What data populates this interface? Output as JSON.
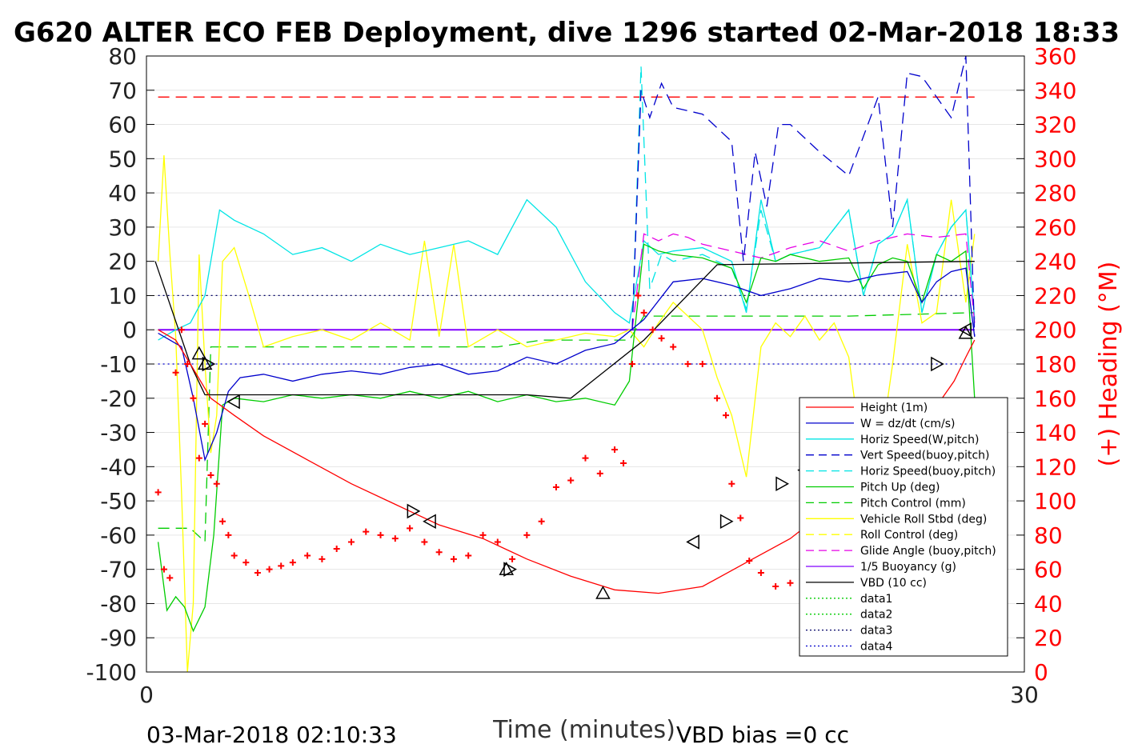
{
  "chart_data": {
    "type": "line",
    "title": "G620 ALTER ECO FEB Deployment, dive 1296 started 02-Mar-2018 18:33",
    "xlabel": "Time (minutes)",
    "ylabel_right": "(+) Heading (°M)",
    "footer_left": "03-Mar-2018 02:10:33",
    "footer_right": "VBD bias =0 cc",
    "xlim": [
      0,
      30
    ],
    "ylim": [
      -100,
      80
    ],
    "ylim_right": [
      0,
      360
    ],
    "x_ticks": [
      "0",
      "30"
    ],
    "y_ticks": [
      "80",
      "70",
      "60",
      "50",
      "40",
      "30",
      "20",
      "10",
      "0",
      "-10",
      "-20",
      "-30",
      "-40",
      "-50",
      "-60",
      "-70",
      "-80",
      "-90",
      "-100"
    ],
    "y_ticks_right": [
      "360",
      "340",
      "320",
      "300",
      "280",
      "260",
      "240",
      "220",
      "200",
      "180",
      "160",
      "140",
      "120",
      "100",
      "80",
      "60",
      "40",
      "20",
      "0"
    ],
    "grid": "horizontal",
    "legend_position": "bottom-right",
    "colors": {
      "height": "#ff0000",
      "w": "#0000cc",
      "horiz": "#00e5e5",
      "vert_buoy": "#0000cc",
      "pitch_up": "#00cc00",
      "pitch_ctrl": "#00cc00",
      "roll": "#ffff00",
      "glide": "#e600e6",
      "buoyancy": "#8000ff",
      "vbd": "#000000",
      "heading": "#ff0000",
      "axis_right": "#ff0000"
    },
    "legend": [
      {
        "label": "Height (1m)",
        "color": "#ff0000",
        "dash": ""
      },
      {
        "label": "W = dz/dt (cm/s)",
        "color": "#0000cc",
        "dash": ""
      },
      {
        "label": "Horiz Speed(W,pitch)",
        "color": "#00e5e5",
        "dash": ""
      },
      {
        "label": "Vert Speed(buoy,pitch)",
        "color": "#0000cc",
        "dash": "10,6"
      },
      {
        "label": "Horiz Speed(buoy,pitch)",
        "color": "#00e5e5",
        "dash": "10,6"
      },
      {
        "label": "Pitch Up (deg)",
        "color": "#00cc00",
        "dash": ""
      },
      {
        "label": "Pitch Control (mm)",
        "color": "#00cc00",
        "dash": "10,6"
      },
      {
        "label": "Vehicle Roll Stbd (deg)",
        "color": "#ffff00",
        "dash": ""
      },
      {
        "label": "Roll Control (deg)",
        "color": "#ffff00",
        "dash": "10,6"
      },
      {
        "label": "Glide Angle (buoy,pitch)",
        "color": "#e600e6",
        "dash": "10,6"
      },
      {
        "label": "1/5 Buoyancy (g)",
        "color": "#8000ff",
        "dash": ""
      },
      {
        "label": "VBD (10 cc)",
        "color": "#000000",
        "dash": ""
      },
      {
        "label": "data1",
        "color": "#00cc00",
        "dash": "2,3"
      },
      {
        "label": "data2",
        "color": "#00cc00",
        "dash": "2,3"
      },
      {
        "label": "data3",
        "color": "#000066",
        "dash": "2,3"
      },
      {
        "label": "data4",
        "color": "#0000cc",
        "dash": "2,3"
      }
    ],
    "series": [
      {
        "key": "height",
        "x": [
          0.4,
          1.0,
          1.5,
          2.2,
          3.0,
          4.0,
          5.5,
          7.0,
          8.5,
          10.0,
          11.5,
          13.0,
          14.5,
          16.0,
          17.5,
          19.0,
          20.5,
          22.0,
          23.5,
          24.5,
          25.5,
          26.7,
          27.6,
          28.0,
          28.3
        ],
        "y": [
          0,
          -3,
          -10,
          -20,
          -25,
          -31,
          -38,
          -45,
          -51,
          -57,
          -61,
          -67,
          -72,
          -76,
          -77,
          -75,
          -68,
          -61,
          -51,
          -44,
          -37,
          -26,
          -15,
          -8,
          -3
        ]
      },
      {
        "key": "w",
        "x": [
          0.4,
          0.8,
          1.2,
          1.6,
          2.0,
          2.4,
          2.8,
          3.2,
          4.0,
          5.0,
          6.0,
          7.0,
          8.0,
          9.0,
          10.0,
          11.0,
          12.0,
          13.0,
          14.0,
          15.0,
          16.0,
          17.0,
          18.0,
          19.0,
          20.0,
          21.0,
          22.0,
          23.0,
          24.0,
          25.0,
          26.0,
          26.5,
          27.0,
          27.5,
          28.0,
          28.3
        ],
        "y": [
          -1,
          -3,
          -5,
          -20,
          -38,
          -30,
          -18,
          -14,
          -13,
          -15,
          -13,
          -12,
          -13,
          -11,
          -10,
          -13,
          -12,
          -8,
          -10,
          -6,
          -4,
          3,
          14,
          15,
          13,
          10,
          12,
          15,
          14,
          16,
          17,
          8,
          14,
          17,
          18,
          -2
        ]
      },
      {
        "key": "horiz",
        "x": [
          0.4,
          1.0,
          1.5,
          2.0,
          2.5,
          3.0,
          4.0,
          5.0,
          6.0,
          7.0,
          8.0,
          9.0,
          10.0,
          11.0,
          12.0,
          13.0,
          14.0,
          15.0,
          16.0,
          16.5,
          17.0,
          17.5,
          18.0,
          19.0,
          20.0,
          20.5,
          21.0,
          21.5,
          22.0,
          23.0,
          24.0,
          24.5,
          25.0,
          25.5,
          26.0,
          26.5,
          27.0,
          27.5,
          28.0,
          28.3
        ],
        "y": [
          -3,
          0,
          2,
          10,
          35,
          32,
          28,
          22,
          24,
          20,
          25,
          22,
          24,
          26,
          22,
          38,
          30,
          14,
          5,
          2,
          26,
          22,
          23,
          24,
          20,
          5,
          38,
          20,
          22,
          24,
          35,
          10,
          25,
          28,
          38,
          5,
          22,
          30,
          35,
          3
        ]
      },
      {
        "key": "vert_buoy",
        "x": [
          16.6,
          16.9,
          17.2,
          17.6,
          18.0,
          19.0,
          20.0,
          20.4,
          20.8,
          21.2,
          21.6,
          22.0,
          23.0,
          24.0,
          25.0,
          25.5,
          26.0,
          26.5,
          27.0,
          27.5,
          28.0,
          28.3
        ],
        "y": [
          0,
          70,
          62,
          72,
          65,
          63,
          55,
          20,
          52,
          36,
          60,
          60,
          52,
          45,
          68,
          30,
          75,
          74,
          68,
          62,
          80,
          -2
        ]
      },
      {
        "key": "horiz_buoy",
        "x": [
          16.6,
          16.9,
          17.2,
          17.6,
          18.0,
          19.0,
          20.0,
          20.5,
          21.0,
          21.5,
          22.0,
          23.0,
          24.0,
          24.5,
          25.0,
          25.5,
          26.0,
          26.5,
          27.0,
          27.5,
          28.0,
          28.3
        ],
        "y": [
          0,
          77,
          12,
          22,
          20,
          22,
          18,
          6,
          35,
          20,
          22,
          24,
          35,
          10,
          25,
          28,
          38,
          5,
          22,
          30,
          35,
          3
        ]
      },
      {
        "key": "pitch_up",
        "x": [
          0.4,
          0.7,
          1.0,
          1.3,
          1.6,
          2.0,
          2.3,
          2.6,
          3.0,
          4.0,
          5.0,
          6.0,
          7.0,
          8.0,
          9.0,
          10.0,
          11.0,
          12.0,
          13.0,
          14.0,
          15.0,
          16.0,
          16.5,
          17.0,
          17.5,
          18.0,
          19.0,
          20.0,
          20.5,
          21.0,
          21.5,
          22.0,
          23.0,
          24.0,
          24.5,
          25.0,
          25.5,
          26.0,
          26.5,
          27.0,
          27.5,
          28.0,
          28.3
        ],
        "y": [
          -62,
          -82,
          -78,
          -81,
          -88,
          -81,
          -60,
          -22,
          -20,
          -21,
          -19,
          -20,
          -19,
          -20,
          -18,
          -20,
          -18,
          -21,
          -19,
          -21,
          -20,
          -22,
          -15,
          25,
          23,
          22,
          21,
          18,
          8,
          21,
          20,
          22,
          20,
          21,
          12,
          19,
          21,
          20,
          8,
          22,
          20,
          23,
          -20
        ]
      },
      {
        "key": "pitch_ctrl",
        "x": [
          0.4,
          1.5,
          2.0,
          2.2,
          12.0,
          13.5,
          16.5,
          17.0,
          20.0,
          24.0,
          28.3
        ],
        "y": [
          -58,
          -58,
          -62,
          -5,
          -5,
          -3,
          -3,
          4,
          4,
          4,
          5
        ]
      },
      {
        "key": "roll",
        "x": [
          0.4,
          0.6,
          0.8,
          1.0,
          1.2,
          1.4,
          1.6,
          1.8,
          2.0,
          2.2,
          2.4,
          2.6,
          3.0,
          3.5,
          4.0,
          5.0,
          6.0,
          7.0,
          8.0,
          9.0,
          9.5,
          10.0,
          10.5,
          11.0,
          12.0,
          13.0,
          14.0,
          15.0,
          16.0,
          16.5,
          17.0,
          17.5,
          18.0,
          19.0,
          19.5,
          20.0,
          20.5,
          21.0,
          21.5,
          22.0,
          22.5,
          23.0,
          23.5,
          24.0,
          24.5,
          25.0,
          25.5,
          26.0,
          26.5,
          27.0,
          27.5,
          28.0,
          28.3
        ],
        "y": [
          20,
          51,
          22,
          -2,
          -48,
          -100,
          -80,
          22,
          -10,
          -36,
          -25,
          20,
          24,
          10,
          -5,
          -2,
          0,
          -3,
          2,
          -3,
          26,
          -2,
          25,
          -5,
          0,
          -5,
          -3,
          -1,
          -2,
          0,
          -5,
          2,
          8,
          0,
          -14,
          -25,
          -43,
          -5,
          2,
          -2,
          4,
          -3,
          2,
          -8,
          -40,
          -40,
          -10,
          25,
          2,
          5,
          38,
          8,
          28
        ]
      },
      {
        "key": "glide",
        "x": [
          16.6,
          17.0,
          17.5,
          18.0,
          18.5,
          19.0,
          20.0,
          21.0,
          22.0,
          23.0,
          24.0,
          25.0,
          26.0,
          27.0,
          28.0,
          28.3
        ],
        "y": [
          0,
          28,
          26,
          28,
          27,
          25,
          23,
          21,
          24,
          26,
          23,
          26,
          28,
          27,
          28,
          2
        ]
      },
      {
        "key": "buoyancy",
        "x": [
          0.4,
          16.5,
          16.6,
          28.3
        ],
        "y": [
          0,
          0,
          0,
          0
        ]
      },
      {
        "key": "vbd",
        "x": [
          0.3,
          0.9,
          1.5,
          2.0,
          9.0,
          13.0,
          14.5,
          17.0,
          19.5,
          28.3
        ],
        "y": [
          20,
          5,
          -10,
          -19,
          -19,
          -19,
          -20,
          -3,
          19,
          20
        ]
      },
      {
        "key": "data3",
        "x": [
          0.4,
          28.3
        ],
        "y": [
          10,
          10
        ]
      },
      {
        "key": "data4",
        "x": [
          0.4,
          28.3
        ],
        "y": [
          -10,
          -10
        ]
      },
      {
        "key": "heading_ref",
        "x": [
          0.4,
          28.3
        ],
        "y": [
          68,
          68
        ]
      }
    ],
    "heading": {
      "x": [
        0.4,
        0.6,
        0.8,
        1.0,
        1.2,
        1.4,
        1.6,
        1.8,
        2.0,
        2.2,
        2.4,
        2.6,
        2.8,
        3.0,
        3.4,
        3.8,
        4.2,
        4.6,
        5.0,
        5.5,
        6.0,
        6.5,
        7.0,
        7.5,
        8.0,
        8.5,
        9.0,
        9.5,
        10.0,
        10.5,
        11.0,
        11.5,
        12.0,
        12.5,
        13.0,
        13.5,
        14.0,
        14.5,
        15.0,
        15.5,
        16.0,
        16.3,
        16.6,
        16.8,
        17.0,
        17.3,
        17.6,
        18.0,
        18.5,
        19.0,
        19.5,
        19.8,
        20.0,
        20.3,
        20.6,
        21.0,
        21.5,
        22.0,
        22.5,
        23.0,
        23.5,
        24.0,
        24.5,
        25.0,
        25.5,
        26.0,
        26.5,
        27.0,
        27.5,
        28.0,
        28.3
      ],
      "y": [
        105,
        60,
        55,
        175,
        200,
        180,
        160,
        125,
        145,
        115,
        110,
        88,
        80,
        68,
        64,
        58,
        60,
        62,
        64,
        68,
        66,
        72,
        76,
        82,
        80,
        78,
        84,
        76,
        70,
        66,
        68,
        80,
        76,
        66,
        80,
        88,
        108,
        112,
        125,
        116,
        130,
        122,
        180,
        220,
        210,
        200,
        195,
        190,
        180,
        180,
        160,
        150,
        110,
        90,
        65,
        58,
        50,
        52,
        46,
        44,
        40,
        65,
        95,
        125,
        115,
        118,
        112,
        45,
        85,
        100,
        82
      ]
    },
    "markers": [
      {
        "x": 1.8,
        "y": -7,
        "dir": "up"
      },
      {
        "x": 2.0,
        "y": -10,
        "dir": "up"
      },
      {
        "x": 2.1,
        "y": -10,
        "dir": "right"
      },
      {
        "x": 3.0,
        "y": -21,
        "dir": "left"
      },
      {
        "x": 9.1,
        "y": -53,
        "dir": "right"
      },
      {
        "x": 9.7,
        "y": -56,
        "dir": "left"
      },
      {
        "x": 12.3,
        "y": -70,
        "dir": "up"
      },
      {
        "x": 12.4,
        "y": -70,
        "dir": "right"
      },
      {
        "x": 15.6,
        "y": -77,
        "dir": "up"
      },
      {
        "x": 18.7,
        "y": -62,
        "dir": "left"
      },
      {
        "x": 19.8,
        "y": -56,
        "dir": "right"
      },
      {
        "x": 21.7,
        "y": -45,
        "dir": "right"
      },
      {
        "x": 22.5,
        "y": -41,
        "dir": "left"
      },
      {
        "x": 24.3,
        "y": -29,
        "dir": "left"
      },
      {
        "x": 25.3,
        "y": -22,
        "dir": "right"
      },
      {
        "x": 27.0,
        "y": -10,
        "dir": "right"
      },
      {
        "x": 28.0,
        "y": -1,
        "dir": "up"
      },
      {
        "x": 28.0,
        "y": 0,
        "dir": "left"
      }
    ]
  }
}
